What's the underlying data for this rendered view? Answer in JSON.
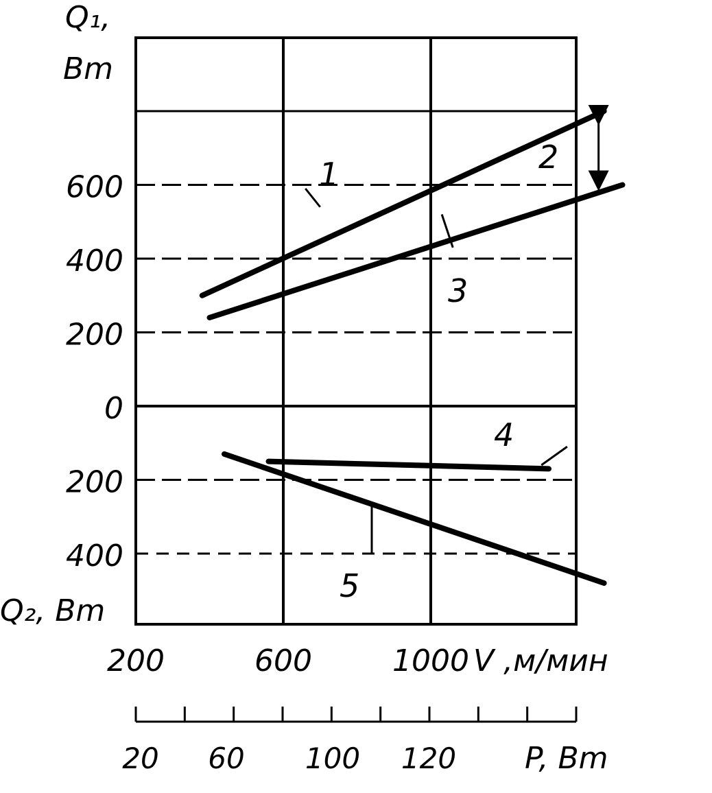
{
  "chart_data": {
    "type": "line",
    "y_axis_top_label": "Q₁, Bm",
    "y_axis_bottom_label": "Q₂, Bm",
    "y_ticks_upper": [
      "600",
      "400",
      "200",
      "0"
    ],
    "y_ticks_lower": [
      "200",
      "400"
    ],
    "x_axis_label": "V ,м/мин",
    "x_ticks": [
      "200",
      "600",
      "1000"
    ],
    "secondary_axis_label": "P, Bm",
    "secondary_ticks": [
      "20",
      "60",
      "100",
      "120"
    ],
    "ylim": [
      -600,
      1000
    ],
    "xlim": [
      200,
      1400
    ],
    "grid": true,
    "series": [
      {
        "name": "1",
        "x": [
          380,
          1470
        ],
        "y": [
          300,
          800
        ]
      },
      {
        "name": "3",
        "x": [
          400,
          1520
        ],
        "y": [
          240,
          600
        ]
      },
      {
        "name": "4",
        "x": [
          560,
          1320
        ],
        "y": [
          -150,
          -170
        ]
      },
      {
        "name": "5",
        "x": [
          440,
          1470
        ],
        "y": [
          -130,
          -480
        ]
      }
    ],
    "annotations": [
      {
        "text": "2",
        "type": "double-arrow",
        "x": 1470,
        "y_from": 800,
        "y_to": 600
      }
    ]
  }
}
